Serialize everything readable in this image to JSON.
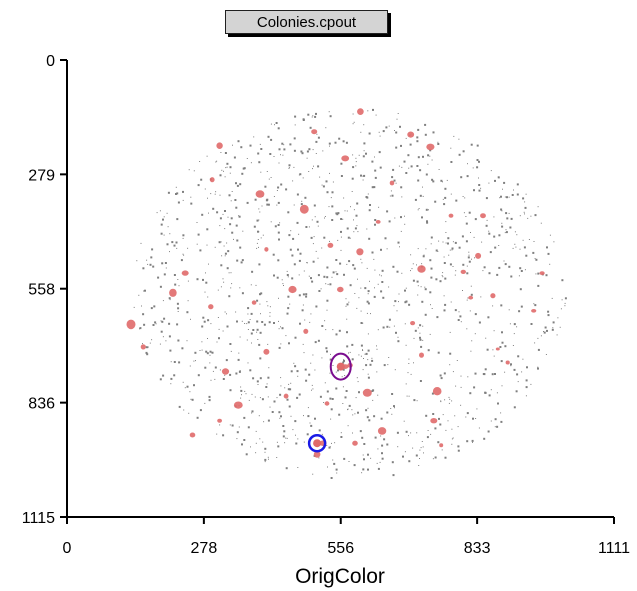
{
  "window": {
    "title": "Colonies.cpout"
  },
  "chart_data": {
    "type": "scatter",
    "title": "Colonies.cpout",
    "xlabel": "OrigColor",
    "ylabel": "",
    "xlim": [
      0,
      1111
    ],
    "ylim": [
      0,
      1115
    ],
    "y_inverted": true,
    "xticks": [
      "0",
      "278",
      "556",
      "833",
      "1111"
    ],
    "yticks": [
      "0",
      "279",
      "558",
      "836",
      "1115"
    ],
    "xtick_values": [
      0,
      278,
      556,
      833,
      1111
    ],
    "ytick_values": [
      0,
      279,
      558,
      836,
      1115
    ],
    "field": {
      "center": [
        572,
        568
      ],
      "radius_x": 440,
      "radius_y": 452
    },
    "colors": {
      "small_points": "#7f7f7f",
      "colonies": "#e06a6a",
      "highlight_1": "#7a0d8f",
      "highlight_2": "#1a1ae6",
      "axis": "#000000"
    },
    "colonies": [
      [
        596,
        126
      ],
      [
        698,
        182
      ],
      [
        502,
        175
      ],
      [
        738,
        212
      ],
      [
        565,
        240
      ],
      [
        310,
        209
      ],
      [
        295,
        292
      ],
      [
        392,
        327
      ],
      [
        482,
        364
      ],
      [
        535,
        452
      ],
      [
        595,
        468
      ],
      [
        805,
        517
      ],
      [
        865,
        575
      ],
      [
        702,
        642
      ],
      [
        575,
        745
      ],
      [
        485,
        662
      ],
      [
        292,
        602
      ],
      [
        405,
        712
      ],
      [
        348,
        842
      ],
      [
        310,
        880
      ],
      [
        255,
        915
      ],
      [
        528,
        838
      ],
      [
        585,
        935
      ],
      [
        760,
        940
      ],
      [
        820,
        580
      ],
      [
        965,
        520
      ],
      [
        948,
        612
      ],
      [
        895,
        738
      ],
      [
        745,
        880
      ],
      [
        632,
        395
      ],
      [
        215,
        568
      ],
      [
        130,
        645
      ],
      [
        380,
        592
      ],
      [
        445,
        820
      ],
      [
        640,
        905
      ],
      [
        752,
        808
      ],
      [
        875,
        705
      ],
      [
        508,
        962
      ],
      [
        565,
        748
      ],
      [
        520,
        935
      ],
      [
        240,
        520
      ],
      [
        458,
        560
      ],
      [
        720,
        510
      ],
      [
        780,
        380
      ],
      [
        660,
        300
      ],
      [
        610,
        812
      ],
      [
        322,
        760
      ],
      [
        405,
        462
      ],
      [
        835,
        478
      ],
      [
        155,
        700
      ],
      [
        845,
        380
      ],
      [
        720,
        720
      ],
      [
        555,
        560
      ]
    ],
    "highlighted": [
      {
        "x": 556,
        "y": 748,
        "color": "purple"
      },
      {
        "x": 508,
        "y": 935,
        "color": "blue"
      }
    ]
  }
}
